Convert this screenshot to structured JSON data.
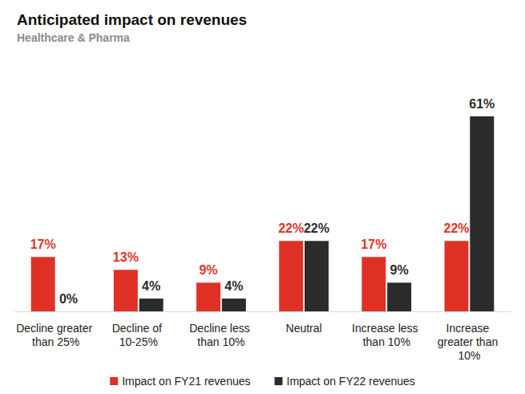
{
  "chart_data": {
    "type": "bar",
    "title": "Anticipated impact on revenues",
    "subtitle": "Healthcare & Pharma",
    "categories": [
      "Decline greater than 25%",
      "Decline of 10-25%",
      "Decline less than 10%",
      "Neutral",
      "Increase less than 10%",
      "Increase greater than 10%"
    ],
    "series": [
      {
        "name": "Impact on FY21 revenues",
        "color": "#e03127",
        "values": [
          17,
          13,
          9,
          22,
          17,
          22
        ],
        "value_labels": [
          "17%",
          "13%",
          "9%",
          "22%",
          "17%",
          "22%"
        ]
      },
      {
        "name": "Impact on FY22 revenues",
        "color": "#2b2b2b",
        "values": [
          0,
          4,
          4,
          22,
          9,
          61
        ],
        "value_labels": [
          "0%",
          "4%",
          "4%",
          "22%",
          "9%",
          "61%"
        ]
      }
    ],
    "ylim": [
      0,
      61
    ],
    "grid": false,
    "legend": "bottom",
    "data_labels": true,
    "tick_labels": "x"
  }
}
